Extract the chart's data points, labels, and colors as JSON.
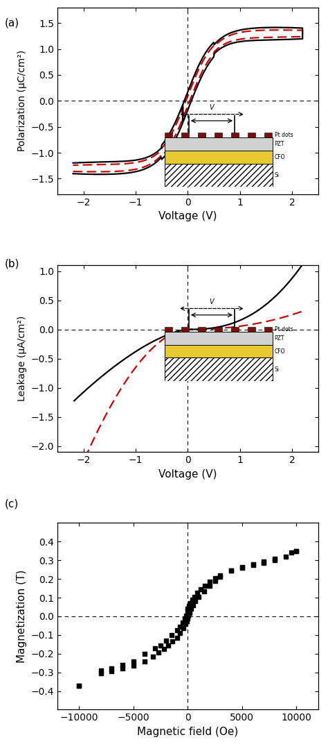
{
  "panel_a": {
    "xlabel": "Voltage (V)",
    "ylabel": "Polarization (μC/cm²)",
    "xlim": [
      -2.5,
      2.5
    ],
    "ylim": [
      -1.8,
      1.8
    ],
    "xticks": [
      -2,
      -1,
      0,
      1,
      2
    ],
    "yticks": [
      -1.5,
      -1.0,
      -0.5,
      0.0,
      0.5,
      1.0,
      1.5
    ]
  },
  "panel_b": {
    "xlabel": "Voltage (V)",
    "ylabel": "Leakage (μA/cm²)",
    "xlim": [
      -2.5,
      2.5
    ],
    "ylim": [
      -2.1,
      1.1
    ],
    "xticks": [
      -2,
      -1,
      0,
      1,
      2
    ],
    "yticks": [
      -2.0,
      -1.5,
      -1.0,
      -0.5,
      0.0,
      0.5,
      1.0
    ]
  },
  "panel_c": {
    "xlabel": "Magnetic field (Oe)",
    "ylabel": "Magnetization (T)",
    "xlim": [
      -12000,
      12000
    ],
    "ylim": [
      -0.5,
      0.5
    ],
    "xticks": [
      -10000,
      -5000,
      0,
      5000,
      10000
    ],
    "yticks": [
      -0.4,
      -0.3,
      -0.2,
      -0.1,
      0.0,
      0.1,
      0.2,
      0.3,
      0.4
    ],
    "branch1_x": [
      -10000,
      -8000,
      -7000,
      -6000,
      -5000,
      -4000,
      -3000,
      -2500,
      -2000,
      -1500,
      -1000,
      -700,
      -500,
      -300,
      -150,
      -50,
      0,
      100,
      200,
      400,
      600,
      900,
      1200,
      1600,
      2000,
      2500,
      3000,
      4000,
      5000,
      6000,
      7000,
      8000,
      9500,
      10000
    ],
    "branch1_y": [
      -0.37,
      -0.29,
      -0.28,
      -0.26,
      -0.24,
      -0.2,
      -0.17,
      -0.155,
      -0.13,
      -0.1,
      -0.075,
      -0.055,
      -0.035,
      -0.015,
      0.005,
      0.025,
      0.04,
      0.055,
      0.07,
      0.09,
      0.105,
      0.125,
      0.145,
      0.165,
      0.185,
      0.205,
      0.22,
      0.245,
      0.265,
      0.28,
      0.295,
      0.31,
      0.34,
      0.35
    ],
    "branch2_x": [
      10000,
      9000,
      8000,
      7000,
      6000,
      5000,
      4000,
      3000,
      2500,
      2000,
      1500,
      1000,
      700,
      500,
      300,
      150,
      50,
      0,
      -100,
      -200,
      -400,
      -700,
      -1000,
      -1400,
      -1800,
      -2200,
      -2700,
      -3200,
      -4000,
      -5000,
      -6000,
      -7000,
      -8000,
      -10000
    ],
    "branch2_y": [
      0.35,
      0.32,
      0.3,
      0.285,
      0.275,
      0.26,
      0.245,
      0.21,
      0.19,
      0.165,
      0.135,
      0.105,
      0.08,
      0.06,
      0.04,
      0.02,
      0.005,
      -0.01,
      -0.025,
      -0.04,
      -0.065,
      -0.09,
      -0.115,
      -0.135,
      -0.155,
      -0.175,
      -0.195,
      -0.215,
      -0.24,
      -0.265,
      -0.28,
      -0.295,
      -0.305,
      -0.37
    ]
  },
  "line_color_black": "#000000",
  "line_color_red": "#cc0000",
  "bg_color": "#ffffff"
}
